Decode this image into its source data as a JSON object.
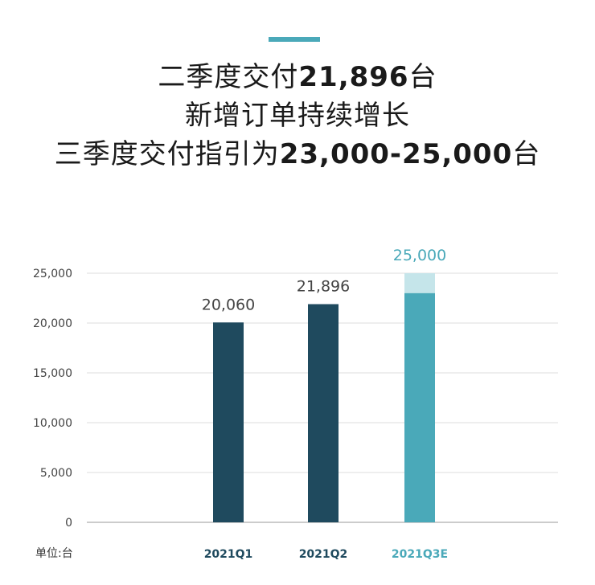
{
  "headline": {
    "line1_prefix": "二季度交付",
    "line1_value": "21,896",
    "line1_suffix": "台",
    "line2": "新增订单持续增长",
    "line3_prefix": "三季度交付指引为",
    "line3_value": "23,000-25,000",
    "line3_suffix": "台"
  },
  "unit_label": "单位:台",
  "colors": {
    "accent": "#4aa9b9",
    "bar_dark": "#1f4a5e",
    "bar_teal": "#4aa9b9",
    "bar_light": "#c5e5ea",
    "axis_text": "#444444",
    "grid": "#dddddd"
  },
  "chart_data": {
    "type": "bar",
    "title": "",
    "xlabel": "",
    "ylabel": "",
    "ylim": [
      0,
      25000
    ],
    "yticks": [
      0,
      5000,
      10000,
      15000,
      20000,
      25000
    ],
    "ytick_labels": [
      "0",
      "5,000",
      "10,000",
      "15,000",
      "20,000",
      "25,000"
    ],
    "grid": true,
    "categories": [
      "2021Q1",
      "2021Q2",
      "2021Q3E"
    ],
    "values": [
      20060,
      21896,
      25000
    ],
    "value_labels": [
      "20,060",
      "21,896",
      "25,000"
    ],
    "range_low": [
      null,
      null,
      23000
    ],
    "estimate_category": "2021Q3E"
  }
}
